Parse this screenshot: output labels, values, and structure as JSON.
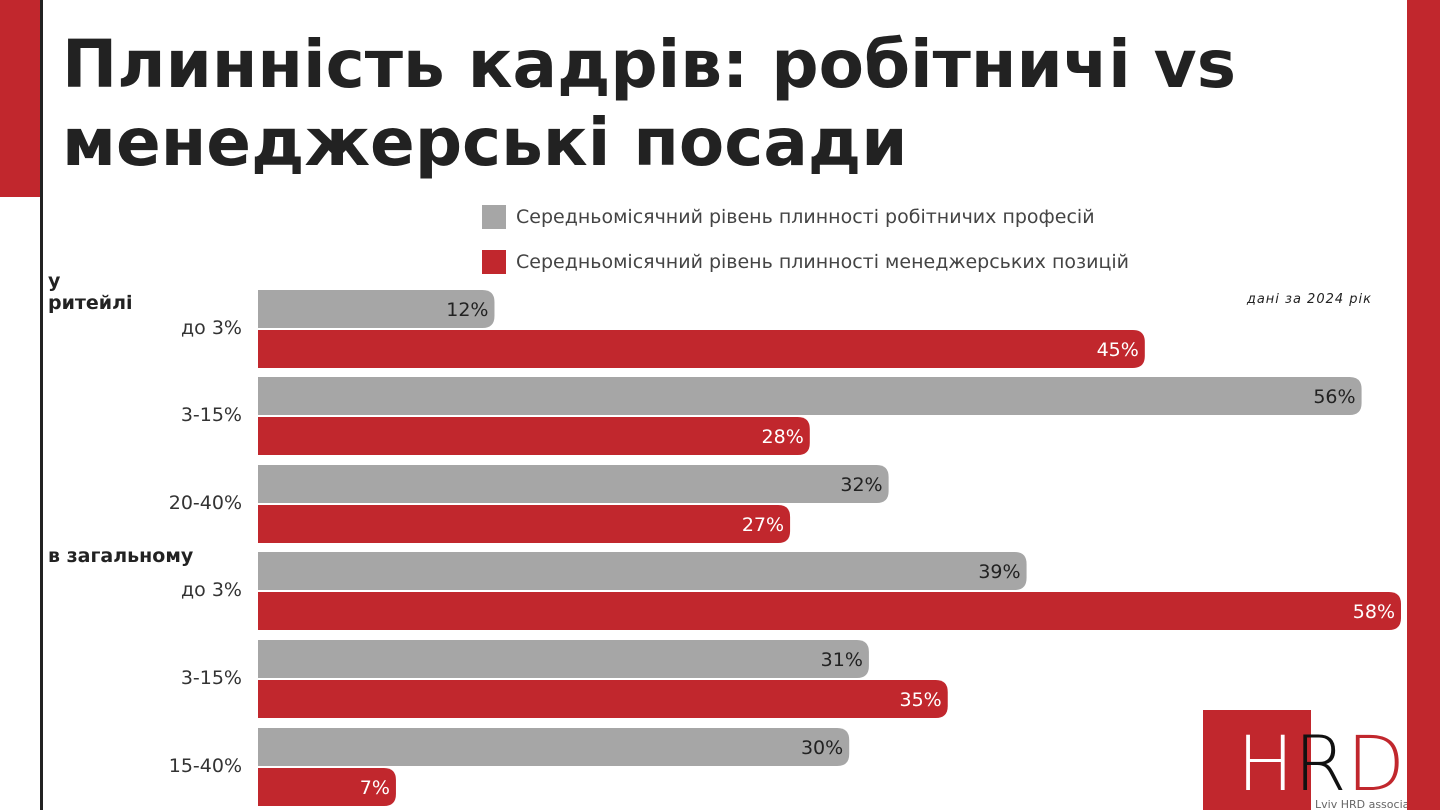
{
  "title": "Плинність кадрів: робітничі vs менеджерські посади",
  "note": "дані за 2024 рік",
  "logo": {
    "text": "HRD",
    "subtitle": "Lviv HRD association"
  },
  "chart_data": {
    "type": "bar",
    "orientation": "horizontal",
    "title": "Плинність кадрів: робітничі vs менеджерські посади",
    "groups": [
      {
        "label": "у ритейлі",
        "categories": [
          "до 3%",
          "3-15%",
          "20-40%"
        ]
      },
      {
        "label": "в загальному",
        "categories": [
          "до 3%",
          "3-15%",
          "15-40%"
        ]
      }
    ],
    "categories": [
      "до 3%",
      "3-15%",
      "20-40%",
      "до 3%",
      "3-15%",
      "15-40%"
    ],
    "series": [
      {
        "name": "Середньомісячний рівень плинності робітничих професій",
        "color": "#a6a6a6",
        "values": [
          12,
          56,
          32,
          39,
          31,
          30
        ]
      },
      {
        "name": "Середньомісячний рівень плинності менеджерських позицій",
        "color": "#c1272d",
        "values": [
          45,
          28,
          27,
          58,
          35,
          7
        ]
      }
    ],
    "value_suffix": "%",
    "xlim": [
      0,
      58
    ],
    "legend": "top-right"
  }
}
